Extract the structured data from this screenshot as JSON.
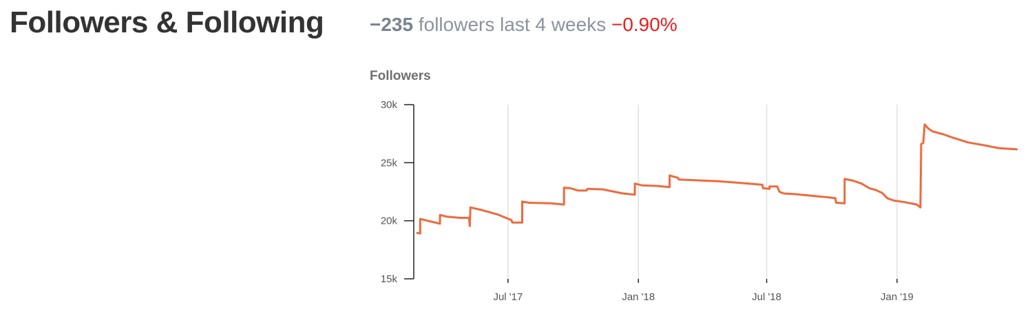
{
  "header": {
    "title": "Followers & Following",
    "summary_delta": "−235",
    "summary_text": " followers last 4 weeks ",
    "summary_pct": "−0.90%"
  },
  "colors": {
    "line": "#ee6a3c",
    "title": "#333333",
    "muted": "#8a939e",
    "negative": "#ee1c1c",
    "grid": "#e0e0e0",
    "axis": "#222222"
  },
  "chart_data": {
    "type": "line",
    "title": "Followers",
    "xlabel": "",
    "ylabel": "",
    "x_type": "date",
    "xlim": [
      "2017-02-18",
      "2019-06-22"
    ],
    "ylim": [
      15000,
      30000
    ],
    "y_ticks": [
      {
        "value": 15000,
        "label": "15k"
      },
      {
        "value": 20000,
        "label": "20k"
      },
      {
        "value": 25000,
        "label": "25k"
      },
      {
        "value": 30000,
        "label": "30k"
      }
    ],
    "x_ticks": [
      {
        "value": "2017-07-01",
        "label": "Jul '17"
      },
      {
        "value": "2018-01-01",
        "label": "Jan '18"
      },
      {
        "value": "2018-07-01",
        "label": "Jul '18"
      },
      {
        "value": "2019-01-01",
        "label": "Jan '19"
      }
    ],
    "grid": "vertical at x ticks",
    "series": [
      {
        "name": "Followers",
        "points": [
          [
            "2017-02-23",
            18950
          ],
          [
            "2017-02-27",
            18900
          ],
          [
            "2017-02-27",
            20150
          ],
          [
            "2017-03-27",
            19750
          ],
          [
            "2017-03-27",
            20500
          ],
          [
            "2017-04-06",
            20350
          ],
          [
            "2017-04-24",
            20250
          ],
          [
            "2017-05-07",
            20250
          ],
          [
            "2017-05-08",
            19550
          ],
          [
            "2017-05-09",
            21150
          ],
          [
            "2017-05-23",
            20950
          ],
          [
            "2017-06-16",
            20550
          ],
          [
            "2017-07-06",
            20050
          ],
          [
            "2017-07-07",
            19850
          ],
          [
            "2017-07-21",
            19850
          ],
          [
            "2017-07-21",
            21650
          ],
          [
            "2017-07-31",
            21550
          ],
          [
            "2017-08-31",
            21500
          ],
          [
            "2017-09-18",
            21400
          ],
          [
            "2017-09-18",
            22850
          ],
          [
            "2017-09-27",
            22800
          ],
          [
            "2017-10-08",
            22600
          ],
          [
            "2017-10-20",
            22600
          ],
          [
            "2017-10-21",
            22750
          ],
          [
            "2017-11-12",
            22700
          ],
          [
            "2017-12-10",
            22350
          ],
          [
            "2017-12-27",
            22250
          ],
          [
            "2017-12-27",
            23200
          ],
          [
            "2018-01-06",
            23050
          ],
          [
            "2018-01-28",
            23000
          ],
          [
            "2018-02-14",
            22900
          ],
          [
            "2018-02-14",
            23900
          ],
          [
            "2018-02-26",
            23700
          ],
          [
            "2018-02-27",
            23550
          ],
          [
            "2018-04-24",
            23400
          ],
          [
            "2018-05-27",
            23250
          ],
          [
            "2018-06-25",
            23100
          ],
          [
            "2018-06-26",
            22800
          ],
          [
            "2018-07-05",
            22750
          ],
          [
            "2018-07-05",
            22950
          ],
          [
            "2018-07-16",
            22950
          ],
          [
            "2018-07-19",
            22500
          ],
          [
            "2018-07-25",
            22350
          ],
          [
            "2018-08-09",
            22300
          ],
          [
            "2018-08-26",
            22200
          ],
          [
            "2018-09-21",
            22050
          ],
          [
            "2018-10-06",
            21950
          ],
          [
            "2018-10-07",
            21550
          ],
          [
            "2018-10-19",
            21500
          ],
          [
            "2018-10-19",
            23600
          ],
          [
            "2018-10-31",
            23450
          ],
          [
            "2018-11-12",
            23200
          ],
          [
            "2018-11-23",
            22800
          ],
          [
            "2018-12-02",
            22650
          ],
          [
            "2018-12-11",
            22400
          ],
          [
            "2018-12-18",
            21950
          ],
          [
            "2018-12-27",
            21750
          ],
          [
            "2019-01-12",
            21600
          ],
          [
            "2019-01-29",
            21400
          ],
          [
            "2019-02-03",
            21150
          ],
          [
            "2019-02-04",
            26600
          ],
          [
            "2019-02-07",
            26700
          ],
          [
            "2019-02-09",
            28300
          ],
          [
            "2019-02-14",
            27950
          ],
          [
            "2019-02-20",
            27700
          ],
          [
            "2019-03-07",
            27450
          ],
          [
            "2019-03-21",
            27150
          ],
          [
            "2019-04-11",
            26750
          ],
          [
            "2019-05-04",
            26500
          ],
          [
            "2019-05-25",
            26250
          ],
          [
            "2019-06-19",
            26150
          ]
        ]
      }
    ]
  }
}
